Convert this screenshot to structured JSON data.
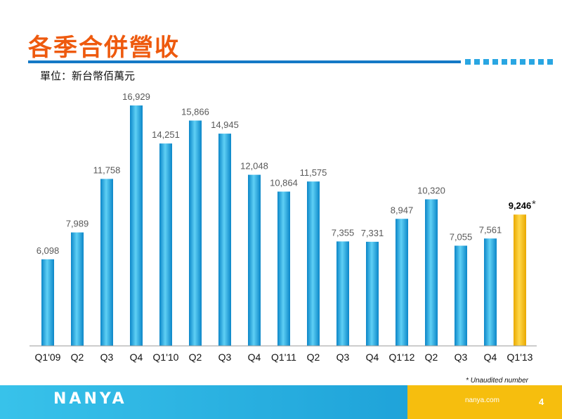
{
  "header": {
    "title": "各季合併營收",
    "unit": "單位：新台幣佰萬元"
  },
  "chart_data": {
    "type": "bar",
    "categories": [
      "Q1'09",
      "Q2",
      "Q3",
      "Q4",
      "Q1'10",
      "Q2",
      "Q3",
      "Q4",
      "Q1'11",
      "Q2",
      "Q3",
      "Q4",
      "Q1'12",
      "Q2",
      "Q3",
      "Q4",
      "Q1'13"
    ],
    "values": [
      6098,
      7989,
      11758,
      16929,
      14251,
      15866,
      14945,
      12048,
      10864,
      11575,
      7355,
      7331,
      8947,
      10320,
      7055,
      7561,
      9246
    ],
    "value_labels": [
      "6,098",
      "7,989",
      "11,758",
      "16,929",
      "14,251",
      "15,866",
      "14,945",
      "12,048",
      "10,864",
      "11,575",
      "7,355",
      "7,331",
      "8,947",
      "10,320",
      "7,055",
      "7,561",
      "9,246"
    ],
    "ylim": [
      0,
      18000
    ],
    "highlight": {
      "index": 16,
      "marker": "*",
      "color": "#f6be0e"
    },
    "bar_color": "#1fa3db",
    "grid": false,
    "legend": "none"
  },
  "footnote": "* Unaudited number",
  "footer": {
    "logo": "NANYA",
    "site": "nanya.com",
    "page": "4"
  },
  "colors": {
    "title": "#ee5a0e",
    "rule": "#1479c6",
    "footer": "#1fa3d9",
    "footer_accent": "#f6be0e"
  }
}
